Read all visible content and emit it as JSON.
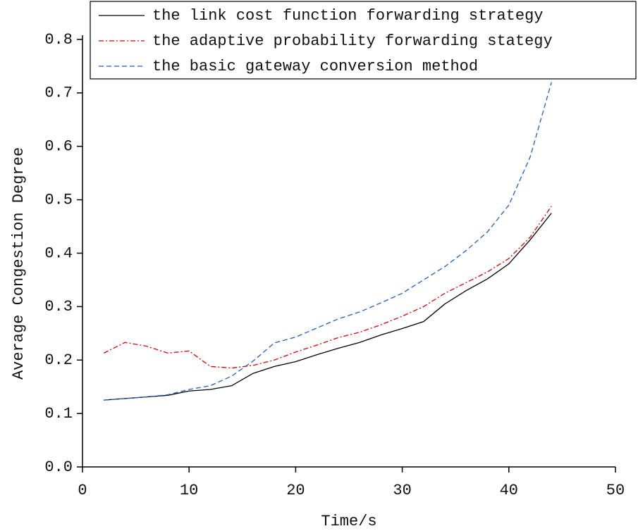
{
  "chart_data": {
    "type": "line",
    "x_label": "Time/s",
    "y_label": "Average Congestion Degree",
    "x": [
      2,
      4,
      6,
      8,
      10,
      12,
      14,
      16,
      18,
      20,
      22,
      24,
      26,
      28,
      30,
      32,
      34,
      36,
      38,
      40,
      42,
      44
    ],
    "series": [
      {
        "name": "the link cost function forwarding strategy",
        "color": "#000000",
        "dash": "solid",
        "values": [
          0.125,
          0.128,
          0.131,
          0.134,
          0.142,
          0.145,
          0.152,
          0.175,
          0.188,
          0.197,
          0.21,
          0.222,
          0.233,
          0.247,
          0.259,
          0.272,
          0.305,
          0.33,
          0.352,
          0.38,
          0.425,
          0.475
        ]
      },
      {
        "name": "the adaptive probability forwarding stategy",
        "color": "#e00000",
        "dash": "dashdot",
        "values": [
          0.213,
          0.233,
          0.226,
          0.213,
          0.217,
          0.188,
          0.185,
          0.19,
          0.2,
          0.215,
          0.228,
          0.242,
          0.252,
          0.266,
          0.282,
          0.3,
          0.325,
          0.345,
          0.365,
          0.39,
          0.43,
          0.488
        ]
      },
      {
        "name": "the basic gateway conversion method",
        "color": "#1f5fbf",
        "dash": "dashed",
        "values": [
          0.125,
          0.128,
          0.131,
          0.135,
          0.145,
          0.152,
          0.17,
          0.198,
          0.232,
          0.243,
          0.26,
          0.277,
          0.29,
          0.307,
          0.325,
          0.35,
          0.375,
          0.405,
          0.44,
          0.49,
          0.58,
          0.72
        ]
      }
    ],
    "xlim": [
      0,
      50
    ],
    "xticks": [
      0,
      10,
      20,
      30,
      40,
      50
    ],
    "ylim": [
      0,
      0.8
    ],
    "yticks": [
      {
        "value": 0,
        "label": "0.0"
      },
      0.1,
      0.2,
      0.3,
      0.4,
      0.5,
      0.6,
      0.7,
      0.8
    ],
    "legend": "top"
  }
}
